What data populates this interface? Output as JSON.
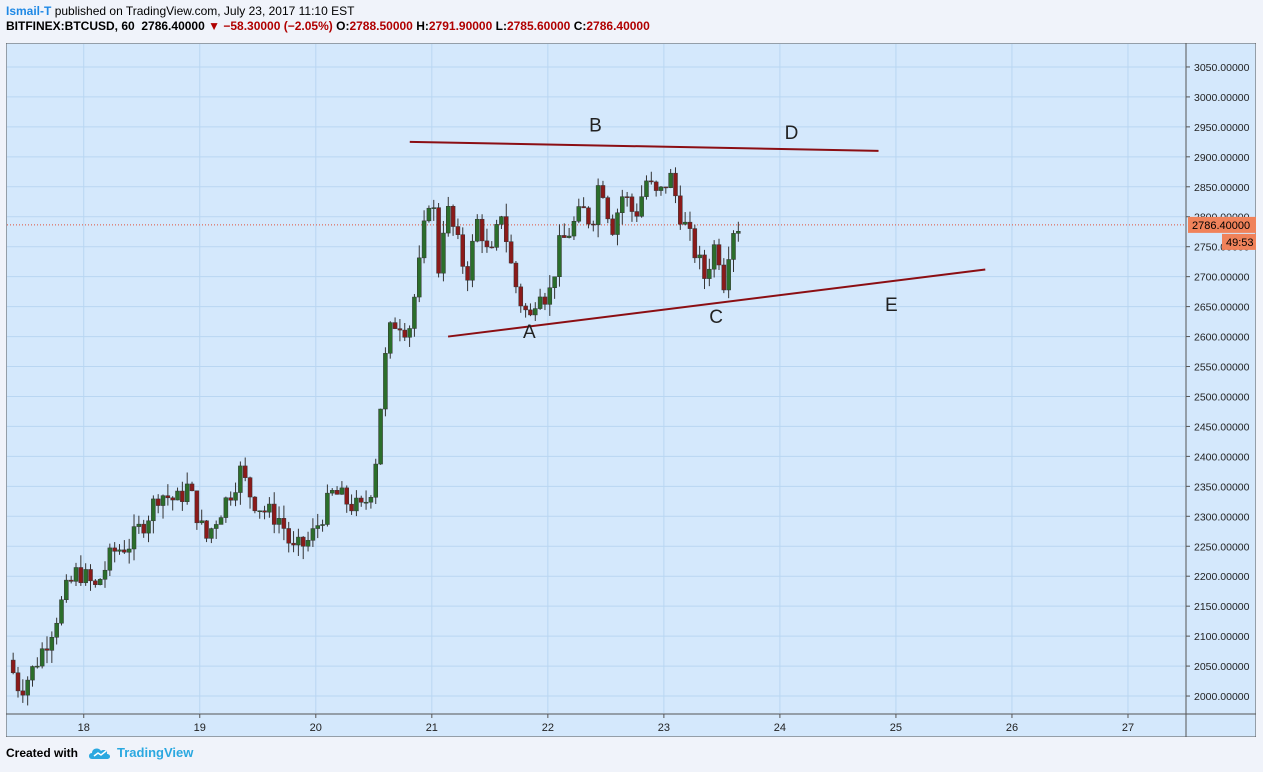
{
  "header": {
    "author": "Ismail-T",
    "published": "published on TradingView.com, July 23, 2017 11:10 EST",
    "symbol": "BITFINEX:BTCUSD, 60",
    "last": "2786.40000",
    "change": "−58.30000 (−2.05%)",
    "o_label": "O:",
    "o_value": "2788.50000",
    "h_label": "H:",
    "h_value": "2791.90000",
    "l_label": "L:",
    "l_value": "2785.60000",
    "c_label": "C:",
    "c_value": "2786.40000"
  },
  "footer": {
    "created_with": "Created with",
    "brand": "TradingView"
  },
  "price_badge": "2786.40000",
  "timer_badge": "49:53",
  "colors": {
    "plot_bg": "#d4e8fc",
    "grid": "#b9d6f2",
    "up_candle": "#2b6e2b",
    "down_candle": "#8b1a1a",
    "trendline": "#8b0e13",
    "price_badge": "#f0825a"
  },
  "chart_data": {
    "type": "candlestick",
    "symbol": "BITFINEX:BTCUSD",
    "interval": "60",
    "ylim": [
      1970,
      3090
    ],
    "xlim": [
      17.33,
      27.5
    ],
    "y_ticks": [
      "2000.00000",
      "2050.00000",
      "2100.00000",
      "2150.00000",
      "2200.00000",
      "2250.00000",
      "2300.00000",
      "2350.00000",
      "2400.00000",
      "2450.00000",
      "2500.00000",
      "2550.00000",
      "2600.00000",
      "2650.00000",
      "2700.00000",
      "2750.00000",
      "2800.00000",
      "2850.00000",
      "2900.00000",
      "2950.00000",
      "3000.00000",
      "3050.00000"
    ],
    "x_ticks": [
      {
        "x": 18,
        "label": "18"
      },
      {
        "x": 19,
        "label": "19"
      },
      {
        "x": 20,
        "label": "20"
      },
      {
        "x": 21,
        "label": "21"
      },
      {
        "x": 22,
        "label": "22"
      },
      {
        "x": 23,
        "label": "23"
      },
      {
        "x": 24,
        "label": "24"
      },
      {
        "x": 25,
        "label": "25"
      },
      {
        "x": 26,
        "label": "26"
      },
      {
        "x": 27,
        "label": "27"
      }
    ],
    "grid": true,
    "last_price": 2786.4,
    "close_path": [
      [
        17.35,
        2060
      ],
      [
        17.45,
        2010
      ],
      [
        17.55,
        2040
      ],
      [
        17.7,
        2100
      ],
      [
        17.85,
        2175
      ],
      [
        17.95,
        2210
      ],
      [
        18.1,
        2180
      ],
      [
        18.25,
        2240
      ],
      [
        18.4,
        2255
      ],
      [
        18.55,
        2300
      ],
      [
        18.65,
        2340
      ],
      [
        18.8,
        2325
      ],
      [
        18.9,
        2350
      ],
      [
        19.05,
        2260
      ],
      [
        19.15,
        2300
      ],
      [
        19.25,
        2335
      ],
      [
        19.35,
        2375
      ],
      [
        19.45,
        2330
      ],
      [
        19.55,
        2310
      ],
      [
        19.7,
        2295
      ],
      [
        19.8,
        2240
      ],
      [
        19.95,
        2260
      ],
      [
        20.05,
        2300
      ],
      [
        20.15,
        2340
      ],
      [
        20.3,
        2320
      ],
      [
        20.4,
        2310
      ],
      [
        20.5,
        2360
      ],
      [
        20.55,
        2470
      ],
      [
        20.62,
        2600
      ],
      [
        20.7,
        2630
      ],
      [
        20.8,
        2610
      ],
      [
        20.88,
        2700
      ],
      [
        20.95,
        2800
      ],
      [
        21.0,
        2860
      ],
      [
        21.05,
        2700
      ],
      [
        21.12,
        2820
      ],
      [
        21.2,
        2770
      ],
      [
        21.3,
        2700
      ],
      [
        21.4,
        2800
      ],
      [
        21.5,
        2720
      ],
      [
        21.6,
        2810
      ],
      [
        21.7,
        2700
      ],
      [
        21.78,
        2650
      ],
      [
        21.85,
        2630
      ],
      [
        21.92,
        2690
      ],
      [
        22.0,
        2660
      ],
      [
        22.1,
        2750
      ],
      [
        22.2,
        2780
      ],
      [
        22.3,
        2810
      ],
      [
        22.38,
        2790
      ],
      [
        22.45,
        2870
      ],
      [
        22.55,
        2780
      ],
      [
        22.65,
        2840
      ],
      [
        22.75,
        2800
      ],
      [
        22.85,
        2860
      ],
      [
        22.95,
        2830
      ],
      [
        23.05,
        2870
      ],
      [
        23.15,
        2800
      ],
      [
        23.25,
        2750
      ],
      [
        23.35,
        2700
      ],
      [
        23.45,
        2760
      ],
      [
        23.52,
        2690
      ],
      [
        23.58,
        2780
      ],
      [
        23.65,
        2786.4
      ]
    ],
    "trendlines": [
      {
        "name": "resistance",
        "points": [
          [
            20.81,
            2925
          ],
          [
            24.85,
            2910
          ]
        ]
      },
      {
        "name": "support",
        "points": [
          [
            21.14,
            2600
          ],
          [
            25.77,
            2712
          ]
        ]
      }
    ],
    "annotations": [
      {
        "text": "A",
        "x": 21.84,
        "y": 2598
      },
      {
        "text": "B",
        "x": 22.41,
        "y": 2942
      },
      {
        "text": "C",
        "x": 23.45,
        "y": 2623
      },
      {
        "text": "D",
        "x": 24.1,
        "y": 2930
      },
      {
        "text": "E",
        "x": 24.96,
        "y": 2643
      }
    ]
  }
}
